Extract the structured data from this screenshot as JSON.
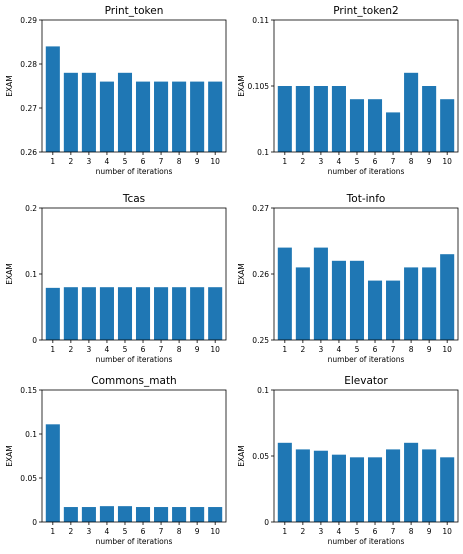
{
  "figure": {
    "bar_color": "#1f77b4",
    "axis_color": "#000000"
  },
  "chart_data": [
    {
      "type": "bar",
      "title": "Print_token",
      "xlabel": "number of iterations",
      "ylabel": "EXAM",
      "categories": [
        "1",
        "2",
        "3",
        "4",
        "5",
        "6",
        "7",
        "8",
        "9",
        "10"
      ],
      "values": [
        0.284,
        0.278,
        0.278,
        0.276,
        0.278,
        0.276,
        0.276,
        0.276,
        0.276,
        0.276
      ],
      "ylim": [
        0.26,
        0.29
      ],
      "yticks": [
        "0.26",
        "0.27",
        "0.28",
        "0.29"
      ],
      "ytick_values": [
        0.26,
        0.27,
        0.28,
        0.29
      ],
      "grid": false
    },
    {
      "type": "bar",
      "title": "Print_token2",
      "xlabel": "number of iterations",
      "ylabel": "EXAM",
      "categories": [
        "1",
        "2",
        "3",
        "4",
        "5",
        "6",
        "7",
        "8",
        "9",
        "10"
      ],
      "values": [
        0.105,
        0.105,
        0.105,
        0.105,
        0.104,
        0.104,
        0.103,
        0.106,
        0.105,
        0.104
      ],
      "ylim": [
        0.1,
        0.11
      ],
      "yticks": [
        "0.1",
        "0.105",
        "0.11"
      ],
      "ytick_values": [
        0.1,
        0.105,
        0.11
      ],
      "grid": false
    },
    {
      "type": "bar",
      "title": "Tcas",
      "xlabel": "number of iterations",
      "ylabel": "EXAM",
      "categories": [
        "1",
        "2",
        "3",
        "4",
        "5",
        "6",
        "7",
        "8",
        "9",
        "10"
      ],
      "values": [
        0.079,
        0.08,
        0.08,
        0.08,
        0.08,
        0.08,
        0.08,
        0.08,
        0.08,
        0.08
      ],
      "ylim": [
        0,
        0.2
      ],
      "yticks": [
        "0",
        "0.1",
        "0.2"
      ],
      "ytick_values": [
        0,
        0.1,
        0.2
      ],
      "grid": false
    },
    {
      "type": "bar",
      "title": "Tot-info",
      "xlabel": "number of iterations",
      "ylabel": "EXAM",
      "categories": [
        "1",
        "2",
        "3",
        "4",
        "5",
        "6",
        "7",
        "8",
        "9",
        "10"
      ],
      "values": [
        0.264,
        0.261,
        0.264,
        0.262,
        0.262,
        0.259,
        0.259,
        0.261,
        0.261,
        0.263
      ],
      "ylim": [
        0.25,
        0.27
      ],
      "yticks": [
        "0.25",
        "0.26",
        "0.27"
      ],
      "ytick_values": [
        0.25,
        0.26,
        0.27
      ],
      "grid": false
    },
    {
      "type": "bar",
      "title": "Commons_math",
      "xlabel": "number of iterations",
      "ylabel": "EXAM",
      "categories": [
        "1",
        "2",
        "3",
        "4",
        "5",
        "6",
        "7",
        "8",
        "9",
        "10"
      ],
      "values": [
        0.111,
        0.017,
        0.017,
        0.018,
        0.018,
        0.017,
        0.017,
        0.017,
        0.017,
        0.017
      ],
      "ylim": [
        0,
        0.15
      ],
      "yticks": [
        "0",
        "0.05",
        "0.1",
        "0.15"
      ],
      "ytick_values": [
        0,
        0.05,
        0.1,
        0.15
      ],
      "grid": false
    },
    {
      "type": "bar",
      "title": "Elevator",
      "xlabel": "number of iterations",
      "ylabel": "EXAM",
      "categories": [
        "1",
        "2",
        "3",
        "4",
        "5",
        "6",
        "7",
        "8",
        "9",
        "10"
      ],
      "values": [
        0.06,
        0.055,
        0.054,
        0.051,
        0.049,
        0.049,
        0.055,
        0.06,
        0.055,
        0.049
      ],
      "ylim": [
        0,
        0.1
      ],
      "yticks": [
        "0",
        "0.05",
        "0.1"
      ],
      "ytick_values": [
        0,
        0.05,
        0.1
      ],
      "grid": false
    }
  ]
}
